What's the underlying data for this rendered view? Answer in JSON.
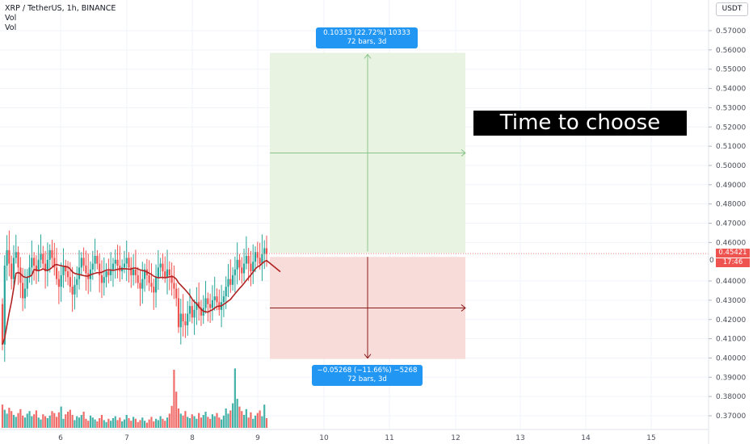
{
  "legend": {
    "symbol": "XRP / TetherUS, 1h, BINANCE",
    "indicator1": "Vol",
    "indicator2": "Vol"
  },
  "currency_button": "USDT",
  "price_axis": {
    "labels": [
      "0.57000",
      "0.56000",
      "0.55000",
      "0.54000",
      "0.53000",
      "0.52000",
      "0.51000",
      "0.50000",
      "0.49000",
      "0.48000",
      "0.47000",
      "0.46000",
      "0.44000",
      "0.43000",
      "0.42000",
      "0.41000",
      "0.40000",
      "0.39000",
      "0.38000",
      "0.37000"
    ],
    "min": 0.363,
    "max": 0.5785,
    "current_price": "0.45421",
    "countdown": "17:46",
    "hidden_label": "0"
  },
  "time_axis": {
    "labels": [
      "6",
      "7",
      "8",
      "9",
      "10",
      "11",
      "12",
      "13",
      "14",
      "15"
    ]
  },
  "long_position": {
    "info_line1": "0.10333 (22.72%) 10333",
    "info_line2": "72 bars, 3d",
    "top_price": 0.5585,
    "entry_price": 0.4545
  },
  "short_position": {
    "info_line1": "−0.05268 (−11.66%) −5268",
    "info_line2": "72 bars, 3d",
    "bottom_price": 0.3995,
    "entry_price": 0.4525
  },
  "annotation": {
    "text": "Time to choose"
  },
  "colors": {
    "up": "#26a69a",
    "down": "#ef5350",
    "ma": "#b22222",
    "profit_zone": "#e8f3e2",
    "loss_zone": "#f8dcd9",
    "tooltip": "#2196f3"
  },
  "chart_data": {
    "type": "candlestick",
    "title": "XRP / TetherUS, 1h, BINANCE",
    "series_note": "approximate hourly closes read off the chart",
    "close": [
      0.407,
      0.448,
      0.456,
      0.449,
      0.441,
      0.452,
      0.455,
      0.447,
      0.439,
      0.431,
      0.436,
      0.442,
      0.447,
      0.452,
      0.448,
      0.445,
      0.451,
      0.454,
      0.449,
      0.445,
      0.451,
      0.456,
      0.452,
      0.447,
      0.441,
      0.437,
      0.443,
      0.448,
      0.445,
      0.442,
      0.437,
      0.433,
      0.438,
      0.441,
      0.447,
      0.452,
      0.448,
      0.444,
      0.441,
      0.446,
      0.449,
      0.453,
      0.449,
      0.443,
      0.439,
      0.442,
      0.445,
      0.443,
      0.446,
      0.449,
      0.451,
      0.448,
      0.445,
      0.447,
      0.449,
      0.452,
      0.447,
      0.443,
      0.446,
      0.443,
      0.439,
      0.436,
      0.441,
      0.446,
      0.443,
      0.439,
      0.437,
      0.434,
      0.442,
      0.447,
      0.449,
      0.445,
      0.442,
      0.446,
      0.443,
      0.439,
      0.436,
      0.431,
      0.416,
      0.423,
      0.419,
      0.417,
      0.423,
      0.427,
      0.421,
      0.425,
      0.429,
      0.426,
      0.422,
      0.426,
      0.431,
      0.428,
      0.426,
      0.43,
      0.432,
      0.429,
      0.425,
      0.429,
      0.432,
      0.437,
      0.441,
      0.438,
      0.443,
      0.446,
      0.451,
      0.447,
      0.444,
      0.449,
      0.453,
      0.449,
      0.445,
      0.45,
      0.455,
      0.452,
      0.449,
      0.454,
      0.457,
      0.454
    ],
    "volume": [
      0.36,
      0.28,
      0.22,
      0.31,
      0.26,
      0.2,
      0.17,
      0.23,
      0.29,
      0.19,
      0.16,
      0.22,
      0.26,
      0.18,
      0.21,
      0.27,
      0.16,
      0.13,
      0.21,
      0.18,
      0.15,
      0.19,
      0.26,
      0.23,
      0.17,
      0.24,
      0.33,
      0.14,
      0.21,
      0.25,
      0.28,
      0.2,
      0.12,
      0.18,
      0.16,
      0.2,
      0.25,
      0.14,
      0.11,
      0.19,
      0.16,
      0.13,
      0.1,
      0.15,
      0.2,
      0.12,
      0.09,
      0.14,
      0.11,
      0.15,
      0.18,
      0.12,
      0.16,
      0.1,
      0.13,
      0.2,
      0.15,
      0.11,
      0.17,
      0.14,
      0.09,
      0.12,
      0.16,
      0.11,
      0.08,
      0.13,
      0.17,
      0.1,
      0.14,
      0.12,
      0.18,
      0.14,
      0.11,
      0.16,
      0.22,
      0.34,
      0.9,
      0.56,
      0.3,
      0.22,
      0.19,
      0.26,
      0.17,
      0.15,
      0.21,
      0.18,
      0.14,
      0.23,
      0.16,
      0.2,
      0.25,
      0.17,
      0.14,
      0.21,
      0.18,
      0.23,
      0.16,
      0.13,
      0.19,
      0.3,
      0.22,
      0.27,
      0.38,
      0.92,
      0.45,
      0.33,
      0.26,
      0.2,
      0.29,
      0.16,
      0.24,
      0.14,
      0.19,
      0.23,
      0.27,
      0.18,
      0.36,
      0.15
    ],
    "moving_average_end": 0.4448
  }
}
